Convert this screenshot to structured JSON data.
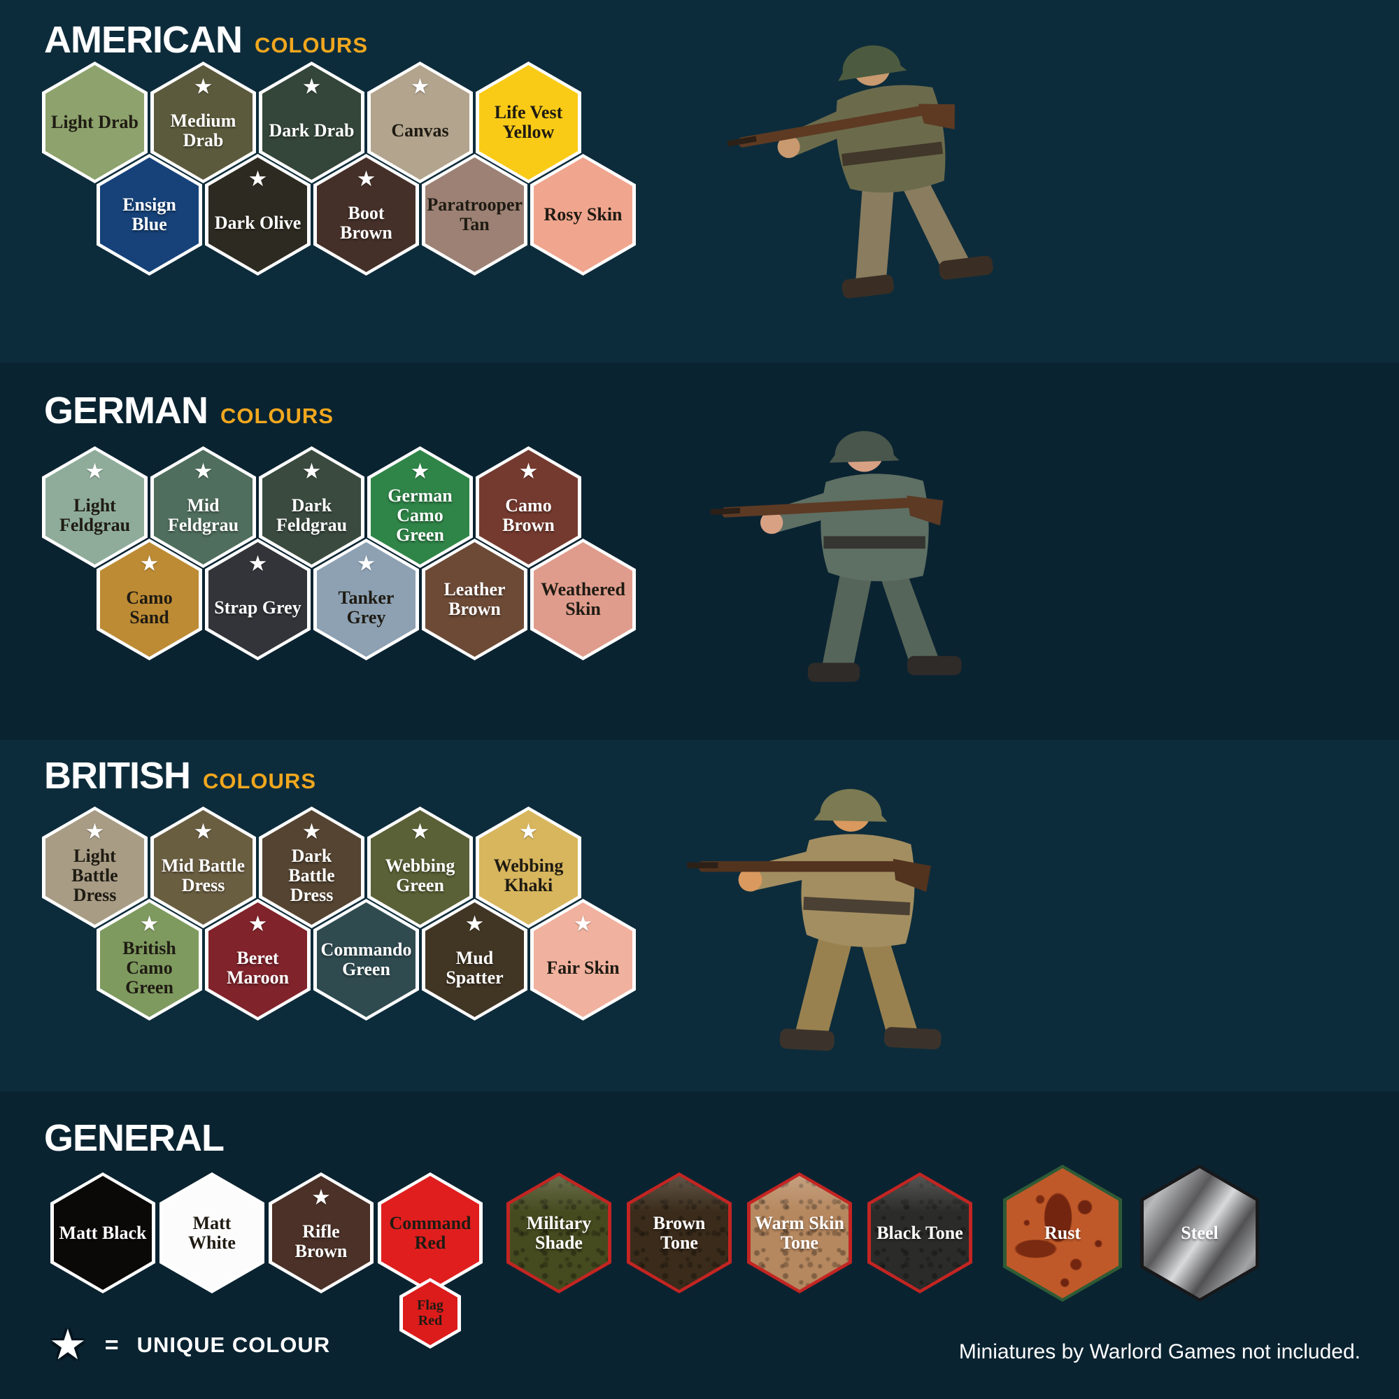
{
  "page": {
    "bg_light": "#0d2c3b",
    "bg_dark": "#0a2331",
    "accent": "#f1a71e"
  },
  "legend": {
    "star": "★",
    "equals": "=",
    "label": "UNIQUE COLOUR"
  },
  "footer": {
    "note": "Miniatures by Warlord Games not included."
  },
  "sections": [
    {
      "id": "american",
      "title": "AMERICAN",
      "subtitle": "COLOURS",
      "tone": "light",
      "figure": {
        "name": "american-soldier-miniature",
        "helmet": "#4c5b3f",
        "uniform": "#6b6b4c",
        "trousers": "#8a7c5f",
        "skin": "#c9996f",
        "rifle": "#5e3a22",
        "boots": "#3a2e24",
        "tilt": -7
      },
      "rows": [
        [
          {
            "label": "Light Drab",
            "color": "#8da26c",
            "text": "dark",
            "star": false
          },
          {
            "label": "Medium Drab",
            "color": "#5c5a3c",
            "text": "light",
            "star": true
          },
          {
            "label": "Dark Drab",
            "color": "#344539",
            "text": "light",
            "star": true
          },
          {
            "label": "Canvas",
            "color": "#b2a48d",
            "text": "dark",
            "star": true
          },
          {
            "label": "Life Vest Yellow",
            "color": "#f9cb17",
            "text": "dark",
            "star": false
          }
        ],
        [
          {
            "label": "Ensign Blue",
            "color": "#164279",
            "text": "light",
            "star": false
          },
          {
            "label": "Dark Olive",
            "color": "#2d2b21",
            "text": "light",
            "star": true
          },
          {
            "label": "Boot Brown",
            "color": "#453029",
            "text": "light",
            "star": true
          },
          {
            "label": "Paratrooper Tan",
            "color": "#9c8174",
            "text": "dark",
            "star": false
          },
          {
            "label": "Rosy Skin",
            "color": "#f0a58e",
            "text": "dark",
            "star": false
          }
        ]
      ]
    },
    {
      "id": "german",
      "title": "GERMAN",
      "subtitle": "COLOURS",
      "tone": "dark",
      "figure": {
        "name": "german-soldier-miniature",
        "helmet": "#49564c",
        "uniform": "#5e6f63",
        "trousers": "#566559",
        "skin": "#d8a184",
        "rifle": "#5c3a24",
        "boots": "#2e2b28",
        "tilt": 0
      },
      "rows": [
        [
          {
            "label": "Light Feldgrau",
            "color": "#8fac9b",
            "text": "dark",
            "star": true
          },
          {
            "label": "Mid Feldgrau",
            "color": "#4f6e5d",
            "text": "light",
            "star": true
          },
          {
            "label": "Dark Feldgrau",
            "color": "#3a4a3f",
            "text": "light",
            "star": true
          },
          {
            "label": "German Camo Green",
            "color": "#2f8548",
            "text": "light",
            "star": true
          },
          {
            "label": "Camo Brown",
            "color": "#753a2f",
            "text": "light",
            "star": true
          }
        ],
        [
          {
            "label": "Camo Sand",
            "color": "#bd8b34",
            "text": "dark",
            "star": true
          },
          {
            "label": "Strap Grey",
            "color": "#323439",
            "text": "light",
            "star": true
          },
          {
            "label": "Tanker Grey",
            "color": "#8da1b3",
            "text": "dark",
            "star": true
          },
          {
            "label": "Leather Brown",
            "color": "#6c4a36",
            "text": "light",
            "star": false
          },
          {
            "label": "Weathered Skin",
            "color": "#df9c8c",
            "text": "dark",
            "star": false
          }
        ]
      ]
    },
    {
      "id": "british",
      "title": "BRITISH",
      "subtitle": "COLOURS",
      "tone": "light",
      "figure": {
        "name": "british-soldier-miniature",
        "helmet": "#7c7a52",
        "uniform": "#a38e61",
        "trousers": "#99814f",
        "skin": "#d9995f",
        "rifle": "#52331e",
        "boots": "#3b332b",
        "tilt": 3
      },
      "rows": [
        [
          {
            "label": "Light Battle Dress",
            "color": "#a89c85",
            "text": "dark",
            "star": true
          },
          {
            "label": "Mid Battle Dress",
            "color": "#6a5e41",
            "text": "light",
            "star": true
          },
          {
            "label": "Dark Battle Dress",
            "color": "#544431",
            "text": "light",
            "star": true
          },
          {
            "label": "Webbing Green",
            "color": "#5a6136",
            "text": "light",
            "star": true
          },
          {
            "label": "Webbing Khaki",
            "color": "#d8b65d",
            "text": "dark",
            "star": true
          }
        ],
        [
          {
            "label": "British Camo Green",
            "color": "#7e9a5f",
            "text": "dark",
            "star": true
          },
          {
            "label": "Beret Maroon",
            "color": "#80232b",
            "text": "light",
            "star": true
          },
          {
            "label": "Commando Green",
            "color": "#2f4b50",
            "text": "light",
            "star": false
          },
          {
            "label": "Mud Spatter",
            "color": "#413524",
            "text": "light",
            "star": true
          },
          {
            "label": "Fair Skin",
            "color": "#f0b19e",
            "text": "dark",
            "star": true
          }
        ]
      ]
    },
    {
      "id": "general",
      "title": "GENERAL",
      "subtitle": "",
      "tone": "dark",
      "rows": [
        [
          {
            "label": "Matt Black",
            "color": "#0b0808",
            "text": "light",
            "star": false
          },
          {
            "label": "Matt White",
            "color": "#fcfcfc",
            "text": "dark",
            "star": false
          },
          {
            "label": "Rifle Brown",
            "color": "#4b3127",
            "text": "light",
            "star": true
          },
          {
            "label": "Command Red",
            "color": "#e01e1e",
            "text": "dark",
            "star": false,
            "sub": {
              "label": "Flag Red",
              "color": "#dc1b1b",
              "text": "dark"
            }
          },
          {
            "label": "Military Shade",
            "color": "#454a1f",
            "text": "light",
            "star": false,
            "style": "wash",
            "border": "#c32522"
          },
          {
            "label": "Brown Tone",
            "color": "#3a2b1a",
            "text": "light",
            "star": false,
            "style": "wash",
            "border": "#c32522"
          },
          {
            "label": "Warm Skin Tone",
            "color": "#b6885f",
            "text": "light",
            "star": false,
            "style": "wash",
            "border": "#c32522"
          },
          {
            "label": "Black Tone",
            "color": "#2b2b29",
            "text": "light",
            "star": false,
            "style": "wash",
            "border": "#c32522"
          },
          {
            "label": "Rust",
            "color": "#c05929",
            "text": "light",
            "star": false,
            "style": "rust",
            "border": "#2e5b36"
          },
          {
            "label": "Steel",
            "color": "#8c8d8f",
            "text": "light",
            "star": false,
            "style": "steel",
            "border": "#17181a"
          }
        ]
      ]
    }
  ]
}
